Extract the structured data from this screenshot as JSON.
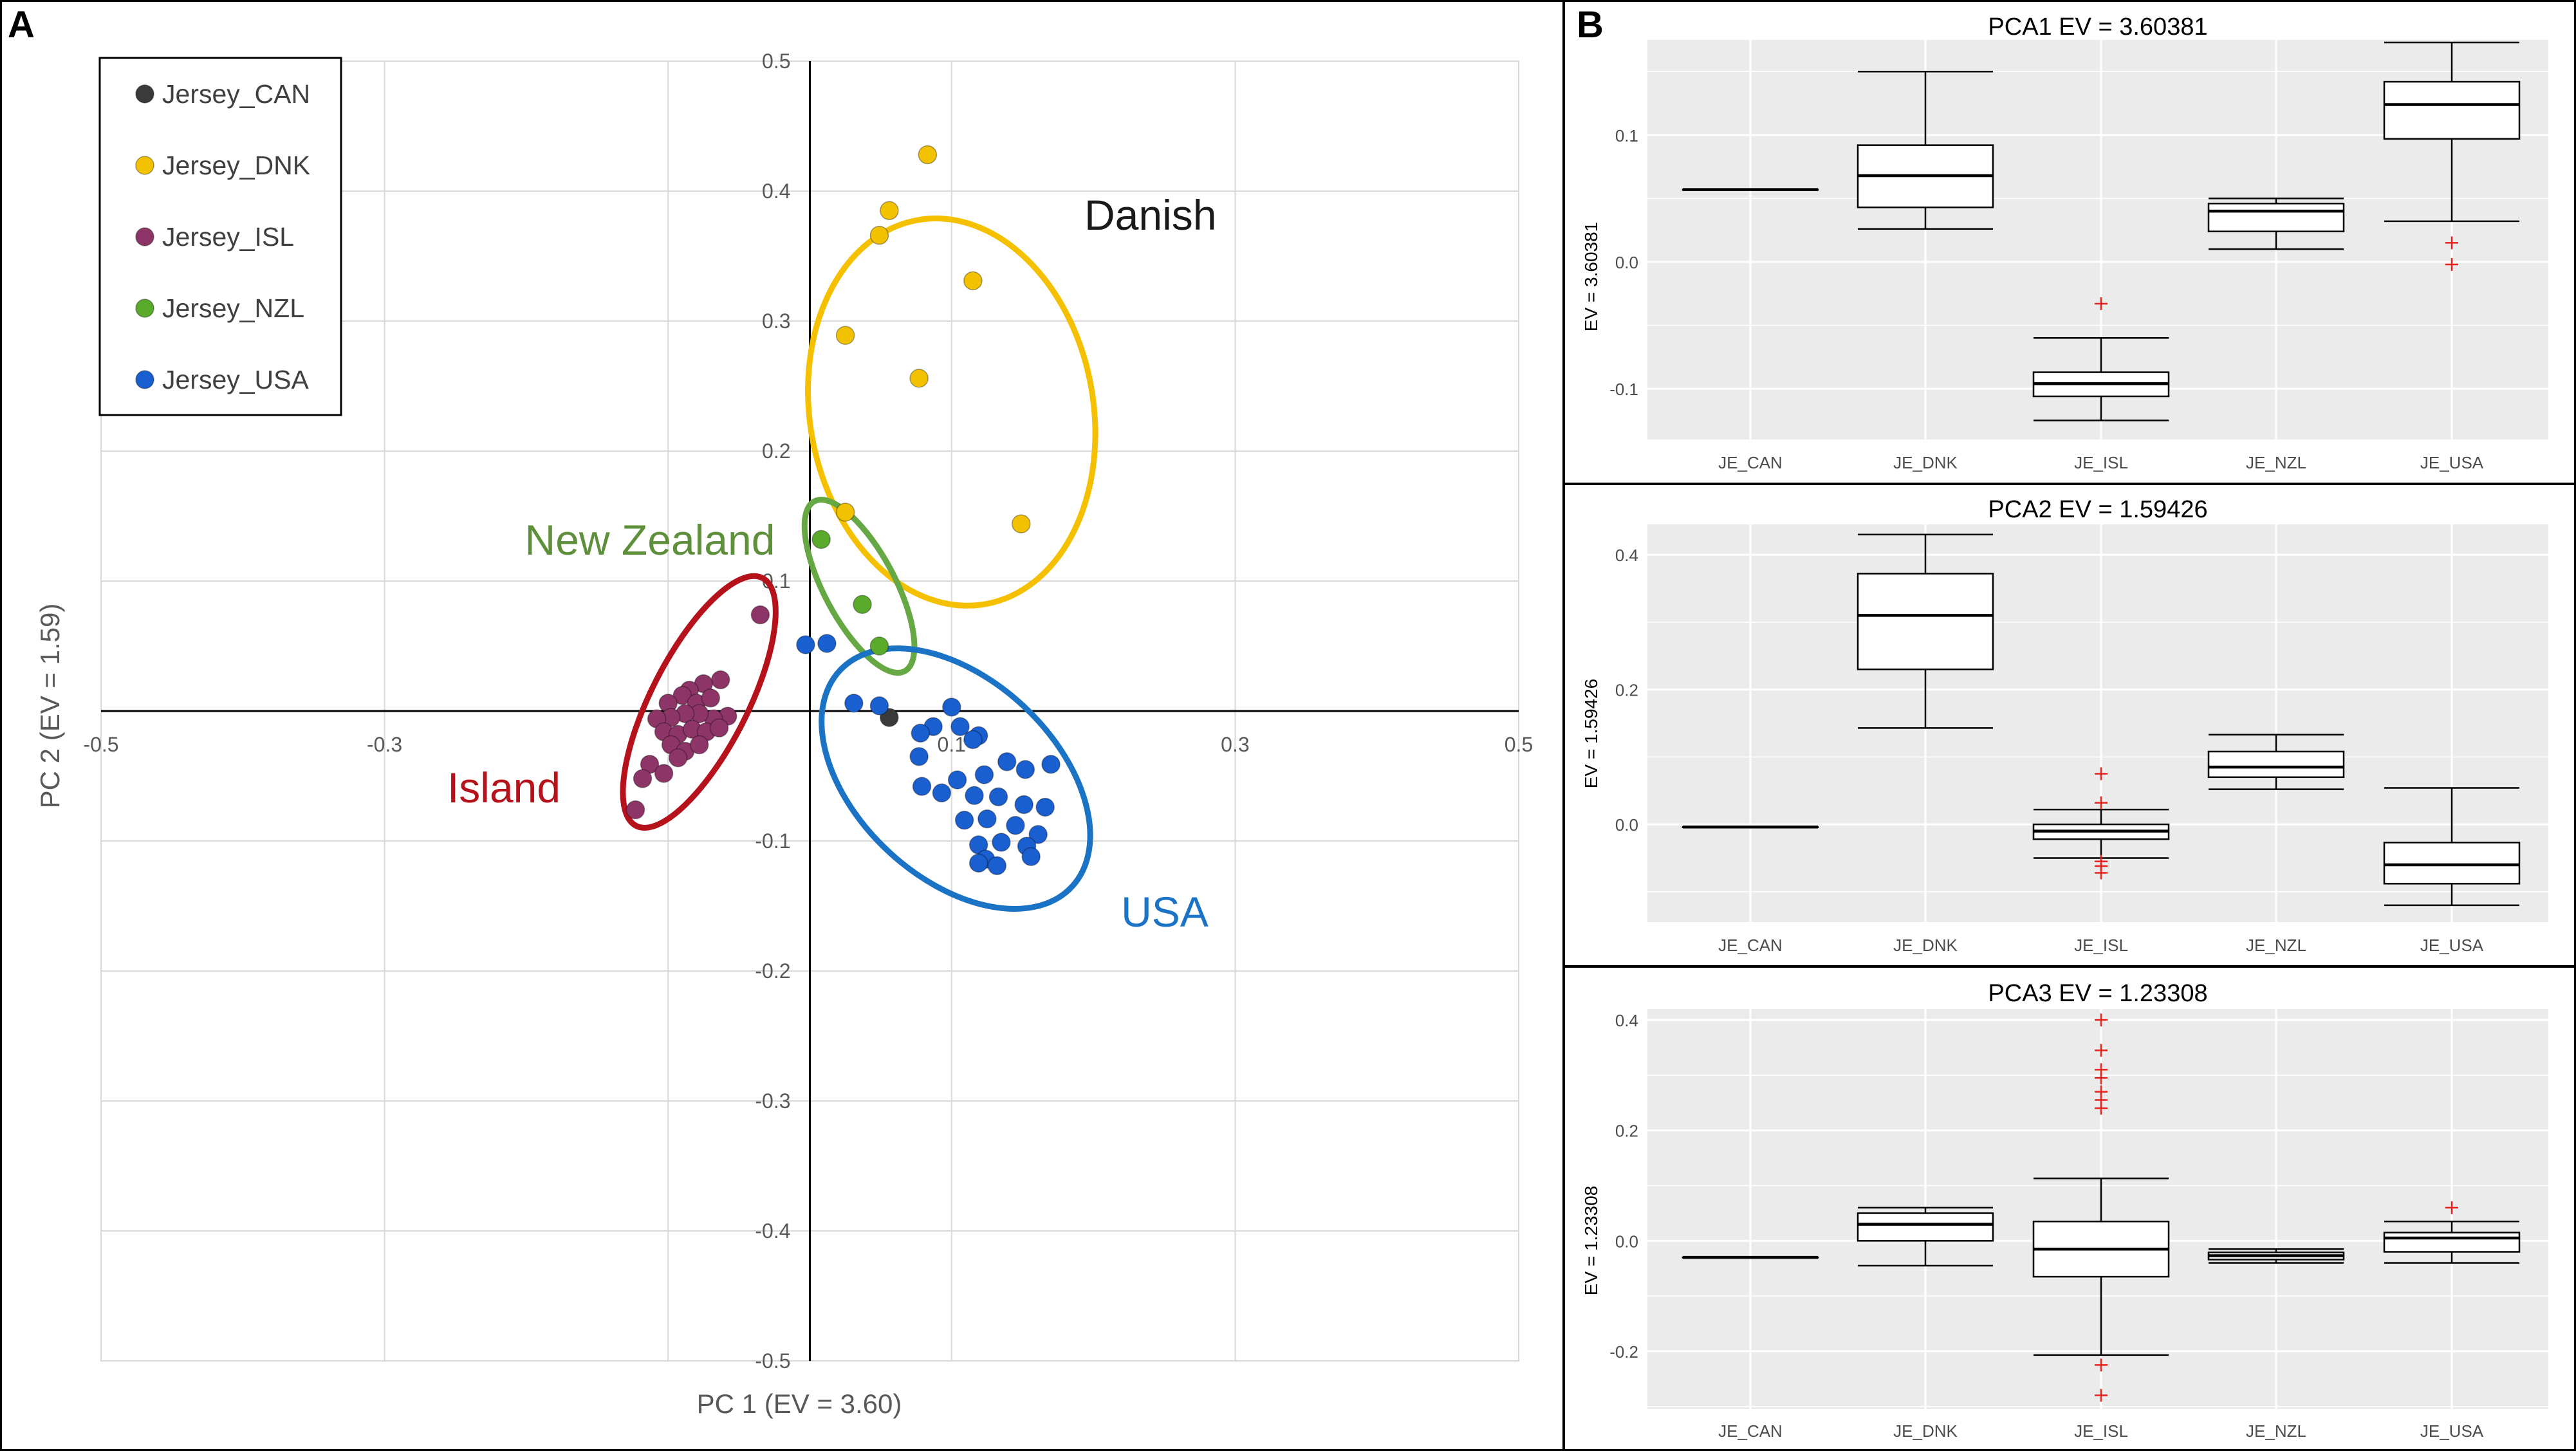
{
  "panels": {
    "a_label": "A",
    "b_label": "B"
  },
  "colors": {
    "CAN": "#3a3a3a",
    "DNK": "#f2c200",
    "ISL": "#8e3568",
    "NZL": "#5aaa2c",
    "USA": "#1a5fd0",
    "ellipse_dnk": "#f5c000",
    "ellipse_nzl": "#66a843",
    "ellipse_isl": "#b5121b",
    "ellipse_usa": "#1a73c4",
    "outlier": "#e8231c",
    "ggbg": "#ebebeb"
  },
  "chart_data": [
    {
      "type": "scatter",
      "title": "",
      "xlabel": "PC 1 (EV = 3.60)",
      "ylabel": "PC 2 (EV = 1.59)",
      "xlim": [
        -0.5,
        0.5
      ],
      "ylim": [
        -0.5,
        0.5
      ],
      "xticks": [
        "-0.5",
        "-0.3",
        "0.1",
        "0.3",
        "0.5"
      ],
      "yticks": [
        "0.5",
        "0.4",
        "0.3",
        "0.2",
        "0.1",
        "-0.1",
        "-0.2",
        "-0.3",
        "-0.4",
        "-0.5"
      ],
      "legend": [
        "Jersey_CAN",
        "Jersey_DNK",
        "Jersey_ISL",
        "Jersey_NZL",
        "Jersey_USA"
      ],
      "group_labels": {
        "dnk": "Danish",
        "nzl": "New Zealand",
        "isl": "Island",
        "usa": "USA"
      },
      "series": [
        {
          "name": "Jersey_CAN",
          "key": "CAN",
          "points": [
            [
              0.056,
              -0.005
            ]
          ]
        },
        {
          "name": "Jersey_DNK",
          "key": "DNK",
          "points": [
            [
              0.083,
              0.428
            ],
            [
              0.056,
              0.385
            ],
            [
              0.049,
              0.366
            ],
            [
              0.115,
              0.331
            ],
            [
              0.025,
              0.289
            ],
            [
              0.077,
              0.256
            ],
            [
              0.025,
              0.153
            ],
            [
              0.149,
              0.144
            ]
          ]
        },
        {
          "name": "Jersey_NZL",
          "key": "NZL",
          "points": [
            [
              0.008,
              0.132
            ],
            [
              0.037,
              0.082
            ],
            [
              0.049,
              0.05
            ]
          ]
        },
        {
          "name": "Jersey_ISL",
          "key": "ISL",
          "points": [
            [
              -0.035,
              0.074
            ],
            [
              -0.063,
              0.024
            ],
            [
              -0.075,
              0.021
            ],
            [
              -0.085,
              0.016
            ],
            [
              -0.09,
              0.012
            ],
            [
              -0.1,
              0.006
            ],
            [
              -0.08,
              0.006
            ],
            [
              -0.07,
              0.01
            ],
            [
              -0.058,
              -0.004
            ],
            [
              -0.068,
              -0.006
            ],
            [
              -0.078,
              -0.002
            ],
            [
              -0.088,
              -0.002
            ],
            [
              -0.098,
              -0.005
            ],
            [
              -0.108,
              -0.006
            ],
            [
              -0.103,
              -0.016
            ],
            [
              -0.093,
              -0.018
            ],
            [
              -0.083,
              -0.014
            ],
            [
              -0.073,
              -0.016
            ],
            [
              -0.064,
              -0.013
            ],
            [
              -0.098,
              -0.026
            ],
            [
              -0.088,
              -0.031
            ],
            [
              -0.078,
              -0.026
            ],
            [
              -0.093,
              -0.036
            ],
            [
              -0.113,
              -0.041
            ],
            [
              -0.103,
              -0.048
            ],
            [
              -0.118,
              -0.052
            ],
            [
              -0.123,
              -0.076
            ]
          ]
        },
        {
          "name": "Jersey_USA",
          "key": "USA",
          "points": [
            [
              -0.003,
              0.051
            ],
            [
              0.012,
              0.052
            ],
            [
              0.031,
              0.006
            ],
            [
              0.049,
              0.004
            ],
            [
              0.087,
              -0.012
            ],
            [
              0.078,
              -0.017
            ],
            [
              0.106,
              -0.012
            ],
            [
              0.119,
              -0.019
            ],
            [
              0.1,
              0.003
            ],
            [
              0.115,
              -0.022
            ],
            [
              0.077,
              -0.035
            ],
            [
              0.104,
              -0.053
            ],
            [
              0.123,
              -0.049
            ],
            [
              0.139,
              -0.039
            ],
            [
              0.152,
              -0.045
            ],
            [
              0.17,
              -0.041
            ],
            [
              0.079,
              -0.058
            ],
            [
              0.093,
              -0.063
            ],
            [
              0.116,
              -0.065
            ],
            [
              0.133,
              -0.066
            ],
            [
              0.151,
              -0.072
            ],
            [
              0.166,
              -0.074
            ],
            [
              0.109,
              -0.084
            ],
            [
              0.125,
              -0.083
            ],
            [
              0.145,
              -0.088
            ],
            [
              0.161,
              -0.095
            ],
            [
              0.119,
              -0.103
            ],
            [
              0.135,
              -0.101
            ],
            [
              0.153,
              -0.104
            ],
            [
              0.156,
              -0.112
            ],
            [
              0.124,
              -0.114
            ],
            [
              0.132,
              -0.119
            ],
            [
              0.119,
              -0.117
            ]
          ]
        }
      ],
      "ellipses": [
        {
          "key": "dnk",
          "color_key": "ellipse_dnk",
          "cx": 0.1,
          "cy": 0.23,
          "rx": 0.1,
          "ry": 0.15,
          "angle": -10
        },
        {
          "key": "nzl",
          "color_key": "ellipse_nzl",
          "cx": 0.035,
          "cy": 0.096,
          "rx": 0.025,
          "ry": 0.074,
          "angle": -28
        },
        {
          "key": "isl",
          "color_key": "ellipse_isl",
          "cx": -0.078,
          "cy": 0.007,
          "rx": 0.034,
          "ry": 0.107,
          "angle": 27
        },
        {
          "key": "usa",
          "color_key": "ellipse_usa",
          "cx": 0.103,
          "cy": -0.052,
          "rx": 0.07,
          "ry": 0.122,
          "angle": -47
        }
      ]
    },
    {
      "type": "box",
      "title": "PCA1 EV = 3.60381",
      "ylabel": "EV = 3.60381",
      "categories": [
        "JE_CAN",
        "JE_DNK",
        "JE_ISL",
        "JE_NZL",
        "JE_USA"
      ],
      "ylim": [
        -0.14,
        0.175
      ],
      "yticks": [
        0.1,
        0.0,
        -0.1
      ],
      "ytick_labels": [
        "0.1",
        "0.0",
        "-0.1"
      ],
      "boxes": [
        {
          "min": 0.057,
          "q1": 0.057,
          "median": 0.057,
          "q3": 0.057,
          "max": 0.057,
          "outliers": []
        },
        {
          "min": 0.026,
          "q1": 0.043,
          "median": 0.068,
          "q3": 0.092,
          "max": 0.15,
          "outliers": []
        },
        {
          "min": -0.125,
          "q1": -0.106,
          "median": -0.096,
          "q3": -0.087,
          "max": -0.06,
          "outliers": [
            -0.033
          ]
        },
        {
          "min": 0.01,
          "q1": 0.024,
          "median": 0.04,
          "q3": 0.046,
          "max": 0.05,
          "outliers": []
        },
        {
          "min": 0.032,
          "q1": 0.097,
          "median": 0.124,
          "q3": 0.142,
          "max": 0.173,
          "outliers": [
            0.015,
            -0.002
          ]
        }
      ]
    },
    {
      "type": "box",
      "title": "PCA2 EV = 1.59426",
      "ylabel": "EV = 1.59426",
      "categories": [
        "JE_CAN",
        "JE_DNK",
        "JE_ISL",
        "JE_NZL",
        "JE_USA"
      ],
      "ylim": [
        -0.145,
        0.445
      ],
      "yticks": [
        0.4,
        0.2,
        0.0
      ],
      "ytick_labels": [
        "0.4",
        "0.2",
        "0.0"
      ],
      "boxes": [
        {
          "min": -0.004,
          "q1": -0.004,
          "median": -0.004,
          "q3": -0.004,
          "max": -0.004,
          "outliers": []
        },
        {
          "min": 0.143,
          "q1": 0.23,
          "median": 0.31,
          "q3": 0.372,
          "max": 0.43,
          "outliers": []
        },
        {
          "min": -0.05,
          "q1": -0.022,
          "median": -0.01,
          "q3": 0.0,
          "max": 0.022,
          "outliers": [
            0.075,
            0.032,
            -0.055,
            -0.062,
            -0.072
          ]
        },
        {
          "min": 0.052,
          "q1": 0.07,
          "median": 0.085,
          "q3": 0.108,
          "max": 0.133,
          "outliers": []
        },
        {
          "min": -0.12,
          "q1": -0.088,
          "median": -0.06,
          "q3": -0.027,
          "max": 0.054,
          "outliers": []
        }
      ]
    },
    {
      "type": "box",
      "title": "PCA3 EV = 1.23308",
      "ylabel": "EV = 1.23308",
      "categories": [
        "JE_CAN",
        "JE_DNK",
        "JE_ISL",
        "JE_NZL",
        "JE_USA"
      ],
      "ylim": [
        -0.305,
        0.42
      ],
      "yticks": [
        0.4,
        0.2,
        0.0,
        -0.2
      ],
      "ytick_labels": [
        "0.4",
        "0.2",
        "0.0",
        "-0.2"
      ],
      "boxes": [
        {
          "min": -0.03,
          "q1": -0.03,
          "median": -0.03,
          "q3": -0.03,
          "max": -0.03,
          "outliers": []
        },
        {
          "min": -0.045,
          "q1": 0.0,
          "median": 0.03,
          "q3": 0.05,
          "max": 0.06,
          "outliers": []
        },
        {
          "min": -0.207,
          "q1": -0.065,
          "median": -0.015,
          "q3": 0.035,
          "max": 0.113,
          "outliers": [
            0.4,
            0.345,
            0.31,
            0.295,
            0.27,
            0.255,
            0.24,
            -0.225,
            -0.28
          ]
        },
        {
          "min": -0.04,
          "q1": -0.034,
          "median": -0.027,
          "q3": -0.021,
          "max": -0.015,
          "outliers": []
        },
        {
          "min": -0.04,
          "q1": -0.02,
          "median": 0.005,
          "q3": 0.015,
          "max": 0.035,
          "outliers": [
            0.06
          ]
        }
      ]
    }
  ]
}
